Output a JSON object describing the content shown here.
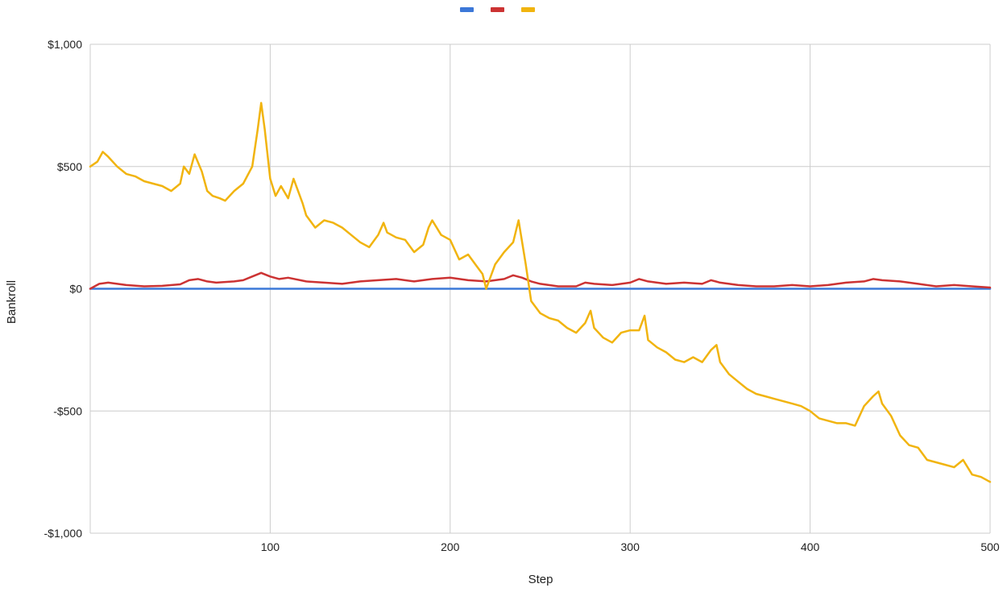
{
  "chart_data": {
    "type": "line",
    "title": "",
    "xlabel": "Step",
    "ylabel": "Bankroll",
    "xlim": [
      0,
      500
    ],
    "ylim": [
      -1000,
      1000
    ],
    "x_ticks": [
      100,
      200,
      300,
      400,
      500
    ],
    "x_tick_labels": [
      "100",
      "200",
      "300",
      "400",
      "500"
    ],
    "y_ticks": [
      1000,
      500,
      0,
      -500,
      -1000
    ],
    "y_tick_labels": [
      "$1,000",
      "$500",
      "$0",
      "-$500",
      "-$1,000"
    ],
    "grid": true,
    "legend_position": "top",
    "series": [
      {
        "color": "#3c78d8",
        "x": [
          0,
          50,
          100,
          150,
          200,
          250,
          300,
          350,
          400,
          450,
          500
        ],
        "values": [
          0,
          0,
          0,
          0,
          0,
          0,
          0,
          0,
          0,
          0,
          0
        ]
      },
      {
        "color": "#cc3333",
        "x": [
          0,
          5,
          10,
          20,
          30,
          40,
          50,
          55,
          60,
          65,
          70,
          80,
          85,
          90,
          95,
          100,
          105,
          110,
          120,
          130,
          140,
          150,
          160,
          170,
          180,
          190,
          200,
          210,
          220,
          230,
          235,
          240,
          245,
          250,
          260,
          270,
          275,
          280,
          290,
          300,
          305,
          310,
          320,
          330,
          340,
          345,
          350,
          360,
          370,
          380,
          390,
          400,
          410,
          420,
          430,
          435,
          440,
          450,
          460,
          470,
          480,
          490,
          500
        ],
        "values": [
          0,
          20,
          25,
          15,
          10,
          12,
          18,
          35,
          40,
          30,
          25,
          30,
          35,
          50,
          65,
          50,
          40,
          45,
          30,
          25,
          20,
          30,
          35,
          40,
          30,
          40,
          45,
          35,
          30,
          40,
          55,
          45,
          30,
          20,
          10,
          10,
          25,
          20,
          15,
          25,
          40,
          30,
          20,
          25,
          20,
          35,
          25,
          15,
          10,
          10,
          15,
          10,
          15,
          25,
          30,
          40,
          35,
          30,
          20,
          10,
          15,
          10,
          5
        ]
      },
      {
        "color": "#f1b40f",
        "x": [
          0,
          4,
          7,
          10,
          15,
          20,
          25,
          30,
          35,
          40,
          45,
          50,
          52,
          55,
          58,
          62,
          65,
          68,
          72,
          75,
          80,
          85,
          90,
          93,
          95,
          97,
          100,
          103,
          106,
          110,
          113,
          118,
          120,
          125,
          130,
          135,
          140,
          145,
          150,
          155,
          160,
          163,
          165,
          170,
          175,
          180,
          185,
          188,
          190,
          195,
          200,
          205,
          210,
          215,
          218,
          220,
          225,
          230,
          235,
          238,
          242,
          245,
          250,
          255,
          260,
          265,
          270,
          275,
          278,
          280,
          285,
          290,
          295,
          300,
          305,
          308,
          310,
          315,
          320,
          325,
          330,
          335,
          340,
          345,
          348,
          350,
          355,
          360,
          365,
          370,
          375,
          380,
          385,
          390,
          395,
          400,
          405,
          410,
          415,
          420,
          425,
          430,
          435,
          438,
          440,
          445,
          450,
          455,
          460,
          465,
          470,
          475,
          480,
          485,
          490,
          495,
          500
        ],
        "values": [
          500,
          520,
          560,
          540,
          500,
          470,
          460,
          440,
          430,
          420,
          400,
          430,
          500,
          470,
          550,
          480,
          400,
          380,
          370,
          360,
          400,
          430,
          500,
          650,
          760,
          650,
          450,
          380,
          420,
          370,
          450,
          350,
          300,
          250,
          280,
          270,
          250,
          220,
          190,
          170,
          220,
          270,
          230,
          210,
          200,
          150,
          180,
          250,
          280,
          220,
          200,
          120,
          140,
          90,
          60,
          0,
          100,
          150,
          190,
          280,
          100,
          -50,
          -100,
          -120,
          -130,
          -160,
          -180,
          -140,
          -90,
          -160,
          -200,
          -220,
          -180,
          -170,
          -170,
          -110,
          -210,
          -240,
          -260,
          -290,
          -300,
          -280,
          -300,
          -250,
          -230,
          -300,
          -350,
          -380,
          -410,
          -430,
          -440,
          -450,
          -460,
          -470,
          -480,
          -500,
          -530,
          -540,
          -550,
          -550,
          -560,
          -480,
          -440,
          -420,
          -470,
          -520,
          -600,
          -640,
          -650,
          -700,
          -710,
          -720,
          -730,
          -700,
          -760,
          -770,
          -790
        ]
      }
    ]
  }
}
